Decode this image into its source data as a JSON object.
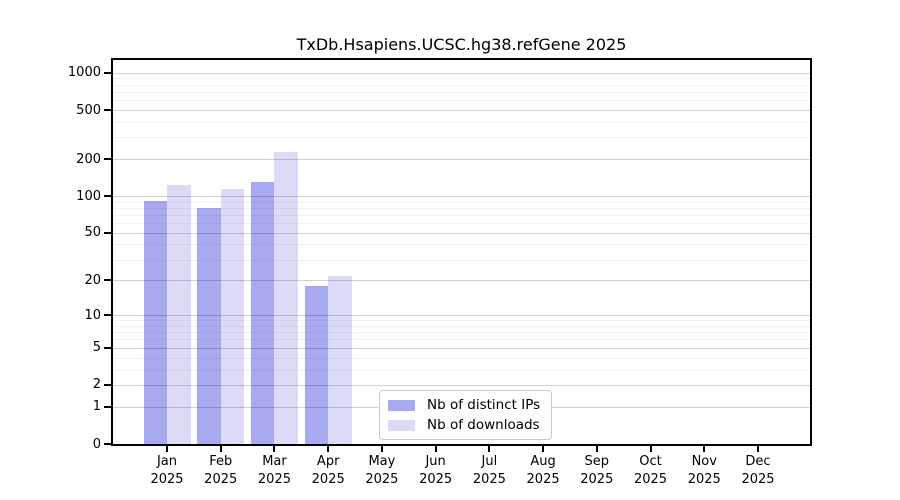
{
  "chart_data": {
    "type": "bar",
    "title": "TxDb.Hsapiens.UCSC.hg38.refGene 2025",
    "year_label": "2025",
    "categories": [
      "Jan",
      "Feb",
      "Mar",
      "Apr",
      "May",
      "Jun",
      "Jul",
      "Aug",
      "Sep",
      "Oct",
      "Nov",
      "Dec"
    ],
    "series": [
      {
        "name": "Nb of distinct IPs",
        "color": "#a9a9ef",
        "values": [
          92,
          80,
          130,
          18,
          0,
          0,
          0,
          0,
          0,
          0,
          0,
          0
        ]
      },
      {
        "name": "Nb of downloads",
        "color": "#dbdbf8",
        "values": [
          123,
          114,
          228,
          22,
          0,
          0,
          0,
          0,
          0,
          0,
          0,
          0
        ]
      }
    ],
    "xlabel": "",
    "ylabel": "",
    "y_axis": {
      "scale": "log1p",
      "ticks": [
        0,
        1,
        2,
        5,
        10,
        20,
        50,
        100,
        200,
        500,
        1000
      ],
      "minor_ticks": [
        3,
        4,
        6,
        7,
        8,
        9,
        30,
        40,
        60,
        70,
        80,
        90,
        300,
        400,
        600,
        700,
        800,
        900
      ],
      "range": [
        0,
        1270
      ]
    },
    "grid": "horizontal, major and minor, drawn over bars",
    "legend_position": "inside lower center",
    "frame_color": "#000000",
    "major_grid_color": "#d1d1d1",
    "minor_grid_color": "#efefef"
  }
}
